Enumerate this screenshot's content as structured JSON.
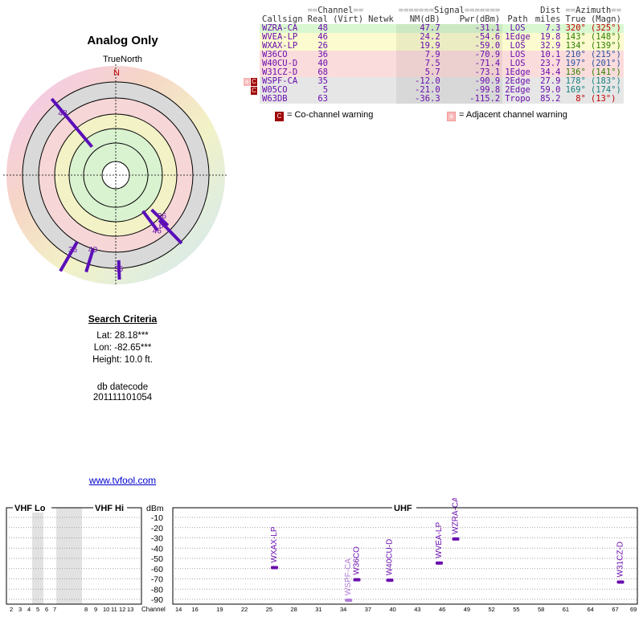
{
  "title": "Analog Only",
  "true_north": "TrueNorth",
  "north_label": "N",
  "criteria": {
    "header": "Search Criteria",
    "lat": "Lat: 28.18***",
    "lon": "Lon: -82.65***",
    "height": "Height: 10.0 ft."
  },
  "db": {
    "label": "db datecode",
    "value": "201111101054"
  },
  "link": "www.tvfool.com",
  "table": {
    "group_headers": {
      "channel": "Channel",
      "signal": "Signal",
      "azimuth": "Azimuth"
    },
    "headers": {
      "callsign": "Callsign",
      "real": "Real",
      "virt": "(Virt)",
      "netwk": "Netwk",
      "nm": "NM(dB)",
      "pwr": "Pwr(dBm)",
      "path": "Path",
      "dist_top": "Dist",
      "dist": "miles",
      "true": "True",
      "magn": "(Magn)"
    },
    "rows": [
      {
        "flag": "",
        "callsign": "WZRA-CA",
        "real": "48",
        "nm": "47.7",
        "pwr": "-31.1",
        "path": "LOS",
        "dist": "7.3",
        "az_true": "320°",
        "az_magn": "(325°)",
        "bg": "#d9f7d0",
        "az_color": "#c00000"
      },
      {
        "flag": "",
        "callsign": "WVEA-LP",
        "real": "46",
        "nm": "24.2",
        "pwr": "-54.6",
        "path": "1Edge",
        "dist": "19.8",
        "az_true": "143°",
        "az_magn": "(148°)",
        "bg": "#fbfbcf",
        "az_color": "#2f7f00"
      },
      {
        "flag": "",
        "callsign": "WXAX-LP",
        "real": "26",
        "nm": "19.9",
        "pwr": "-59.0",
        "path": "LOS",
        "dist": "32.9",
        "az_true": "134°",
        "az_magn": "(139°)",
        "bg": "#fbfbcf",
        "az_color": "#2f7f00"
      },
      {
        "flag": "",
        "callsign": "W36CO",
        "real": "36",
        "nm": "7.9",
        "pwr": "-70.9",
        "path": "LOS",
        "dist": "10.1",
        "az_true": "210°",
        "az_magn": "(215°)",
        "bg": "#fbdcdc",
        "az_color": "#2a4fa0"
      },
      {
        "flag": "",
        "callsign": "W40CU-D",
        "real": "40",
        "nm": "7.5",
        "pwr": "-71.4",
        "path": "LOS",
        "dist": "23.7",
        "az_true": "197°",
        "az_magn": "(201°)",
        "bg": "#fbdcdc",
        "az_color": "#2a4fa0"
      },
      {
        "flag": "",
        "callsign": "W31CZ-D",
        "real": "68",
        "nm": "5.7",
        "pwr": "-73.1",
        "path": "1Edge",
        "dist": "34.4",
        "az_true": "136°",
        "az_magn": "(141°)",
        "bg": "#fbdcdc",
        "az_color": "#2f7f00"
      },
      {
        "flag": "a C",
        "callsign": "WSPF-CA",
        "real": "35",
        "nm": "-12.0",
        "pwr": "-90.9",
        "path": "2Edge",
        "dist": "27.9",
        "az_true": "178°",
        "az_magn": "(183°)",
        "bg": "#e6e6e6",
        "az_color": "#1a7f7f"
      },
      {
        "flag": "C",
        "callsign": "W05CO",
        "real": "5",
        "nm": "-21.0",
        "pwr": "-99.8",
        "path": "2Edge",
        "dist": "59.0",
        "az_true": "169°",
        "az_magn": "(174°)",
        "bg": "#e6e6e6",
        "az_color": "#1a7f7f"
      },
      {
        "flag": "",
        "callsign": "W63DB",
        "real": "63",
        "nm": "-36.3",
        "pwr": "-115.2",
        "path": "Tropo",
        "dist": "85.2",
        "az_true": "8°",
        "az_magn": "(13°)",
        "bg": "#e6e6e6",
        "az_color": "#c00000"
      }
    ]
  },
  "legend": {
    "co_channel": "= Co-channel warning",
    "adjacent": "= Adjacent channel warning",
    "co_mark": "C",
    "adj_mark": "a"
  },
  "chart_data": [
    {
      "type": "scatter",
      "title": "",
      "radial_labels": [
        {
          "channel": "48",
          "azimuth_deg": 320
        },
        {
          "channel": "46",
          "azimuth_deg": 143
        },
        {
          "channel": "26",
          "azimuth_deg": 134
        },
        {
          "channel": "68",
          "azimuth_deg": 136
        },
        {
          "channel": "36",
          "azimuth_deg": 210
        },
        {
          "channel": "40",
          "azimuth_deg": 197
        },
        {
          "channel": "35",
          "azimuth_deg": 178
        }
      ]
    },
    {
      "type": "bar",
      "ylabel": "dBm",
      "xlabel": "Channel",
      "ylim": [
        -90,
        -10
      ],
      "yticks": [
        "-10",
        "-20",
        "-30",
        "-40",
        "-50",
        "-60",
        "-70",
        "-80",
        "-90"
      ],
      "bands": {
        "vhf_lo": "VHF Lo",
        "vhf_hi": "VHF Hi",
        "uhf": "UHF"
      },
      "vhf_ticks": [
        "2",
        "3",
        "4",
        "5",
        "6",
        "7",
        "8",
        "9",
        "10",
        "11",
        "12",
        "13"
      ],
      "uhf_ticks": [
        "14",
        "16",
        "19",
        "22",
        "25",
        "28",
        "31",
        "34",
        "37",
        "40",
        "43",
        "46",
        "49",
        "52",
        "55",
        "58",
        "61",
        "64",
        "67",
        "69"
      ],
      "stations": [
        {
          "callsign": "WXAX-LP",
          "channel": 26,
          "dbm": -59.0,
          "color": "#6a0dad"
        },
        {
          "callsign": "WSPF-CA",
          "channel": 35,
          "dbm": -90.9,
          "color": "#b07ad8"
        },
        {
          "callsign": "W36CO",
          "channel": 36,
          "dbm": -70.9,
          "color": "#6a0dad"
        },
        {
          "callsign": "W40CU-D",
          "channel": 40,
          "dbm": -71.4,
          "color": "#6a0dad"
        },
        {
          "callsign": "WVEA-LP",
          "channel": 46,
          "dbm": -54.6,
          "color": "#6a0dad"
        },
        {
          "callsign": "WZRA-CA",
          "channel": 48,
          "dbm": -31.1,
          "color": "#6a0dad"
        },
        {
          "callsign": "W31CZ-D",
          "channel": 68,
          "dbm": -73.1,
          "color": "#6a0dad"
        }
      ]
    }
  ]
}
